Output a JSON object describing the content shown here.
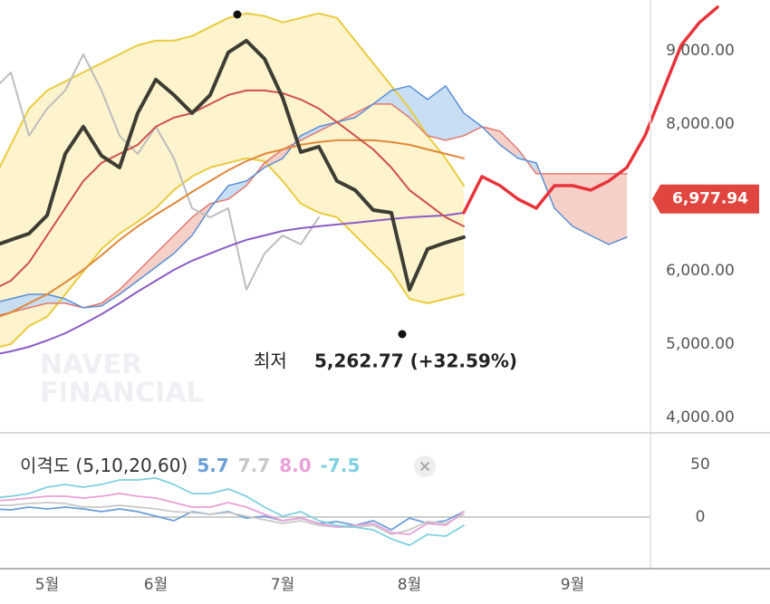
{
  "chart_data": [
    {
      "type": "line",
      "categories": [
        null,
        null,
        null,
        "5월",
        null,
        null,
        null,
        null,
        null,
        "6월",
        null,
        null,
        null,
        null,
        null,
        null,
        "7월",
        null,
        null,
        null,
        null,
        null,
        null,
        "8월",
        null,
        null,
        null,
        null,
        null,
        null,
        null,
        null,
        "9월",
        null,
        null,
        null,
        null,
        null,
        null,
        null,
        null
      ],
      "ylim": [
        3790,
        9690
      ],
      "yticks": [
        {
          "value": 4000,
          "label": "4,000.00"
        },
        {
          "value": 5000,
          "label": "5,000.00"
        },
        {
          "value": 6000,
          "label": "6,000.00"
        },
        {
          "value": 8000,
          "label": "8,000.00"
        },
        {
          "value": 9000,
          "label": "9,000.00"
        }
      ],
      "current_price": {
        "value": 6977.94,
        "label": "6,977.94",
        "color": "#e0463f"
      },
      "low_annotation": {
        "label": "최저",
        "value": "5,262.77 (+32.59%)"
      },
      "watermark": [
        "NAVER",
        "FINANCIAL"
      ],
      "series": [
        {
          "color": "#e8cc40",
          "fill": "#fdf3cc",
          "fill_to": 1,
          "width": 2,
          "values": [
            7222,
            7716,
            8210,
            8457,
            8580,
            8704,
            8829,
            8951,
            9074,
            9136,
            9136,
            9199,
            9323,
            9446,
            9508,
            9471,
            9385,
            9446,
            9508,
            9446,
            9136,
            8829,
            8520,
            8210,
            7840,
            7531,
            7162,
            null,
            null,
            null,
            null,
            null,
            null,
            null,
            null,
            null,
            null,
            null,
            null,
            null,
            null
          ]
        },
        {
          "color": "#e8cc40",
          "width": 2,
          "values": [
            4939,
            5000,
            5247,
            5371,
            5679,
            5988,
            6296,
            6506,
            6667,
            6852,
            7099,
            7284,
            7407,
            7469,
            7531,
            7494,
            7222,
            6914,
            6790,
            6728,
            6481,
            6235,
            5988,
            5617,
            5556,
            5617,
            5679,
            null,
            null,
            null,
            null,
            null,
            null,
            null,
            null,
            null,
            null,
            null,
            null,
            null,
            null
          ]
        },
        {
          "color": "#e07a70",
          "cloud_with": 3,
          "cloud_colors": [
            "#f4cbc2",
            "#c2daf4"
          ],
          "width": 1.5,
          "values": [
            5371,
            5432,
            5494,
            5556,
            5556,
            5494,
            5556,
            5741,
            5988,
            6235,
            6481,
            6728,
            6914,
            6975,
            7160,
            7469,
            7654,
            7778,
            7901,
            8025,
            8148,
            8272,
            8272,
            8087,
            7840,
            7778,
            7840,
            7963,
            7901,
            7654,
            7321,
            7321,
            7321,
            7321,
            7321,
            7321,
            null,
            null,
            null,
            null,
            null
          ]
        },
        {
          "color": "#5b8fd6",
          "width": 1.5,
          "values": [
            5556,
            5617,
            5679,
            5679,
            5617,
            5494,
            5519,
            5679,
            5864,
            6049,
            6235,
            6481,
            6852,
            7160,
            7222,
            7407,
            7531,
            7840,
            7963,
            8025,
            8087,
            8272,
            8457,
            8520,
            8333,
            8520,
            8148,
            7963,
            7716,
            7531,
            7469,
            6852,
            6605,
            6481,
            6358,
            6457,
            null,
            null,
            null,
            null,
            null
          ]
        },
        {
          "color": "#bdbdbd",
          "width": 2,
          "values": [
            8457,
            8704,
            7840,
            8210,
            8457,
            8951,
            8457,
            7840,
            7593,
            7963,
            7531,
            6852,
            6728,
            6852,
            5741,
            6235,
            6481,
            6358,
            6728,
            null,
            null,
            null,
            null,
            null,
            null,
            null,
            null,
            null,
            null,
            null,
            null,
            null,
            null,
            null,
            null,
            null,
            null,
            null,
            null,
            null,
            null
          ]
        },
        {
          "color": "#8a5cc4",
          "width": 2,
          "values": [
            4852,
            4901,
            4963,
            5049,
            5148,
            5272,
            5407,
            5556,
            5716,
            5864,
            6012,
            6136,
            6235,
            6333,
            6420,
            6481,
            6543,
            6580,
            6605,
            6630,
            6654,
            6679,
            6704,
            6728,
            6741,
            6753,
            6790,
            null,
            null,
            null,
            null,
            null,
            null,
            null,
            null,
            null,
            null,
            null,
            null,
            null,
            null
          ]
        },
        {
          "color": "#e0883a",
          "width": 2,
          "values": [
            5346,
            5432,
            5556,
            5679,
            5840,
            6012,
            6210,
            6420,
            6605,
            6765,
            6914,
            7074,
            7222,
            7370,
            7494,
            7593,
            7654,
            7716,
            7753,
            7778,
            7778,
            7778,
            7753,
            7716,
            7654,
            7593,
            7531,
            null,
            null,
            null,
            null,
            null,
            null,
            null,
            null,
            null,
            null,
            null,
            null,
            null,
            null
          ]
        },
        {
          "color": "#d0504a",
          "width": 2,
          "values": [
            5741,
            5864,
            6112,
            6481,
            6852,
            7222,
            7469,
            7593,
            7716,
            7963,
            8087,
            8148,
            8272,
            8395,
            8457,
            8457,
            8420,
            8333,
            8210,
            8025,
            7840,
            7654,
            7407,
            7099,
            6914,
            6728,
            6605,
            null,
            null,
            null,
            null,
            null,
            null,
            null,
            null,
            null,
            null,
            null,
            null,
            null,
            null
          ]
        },
        {
          "color": "#3d3d33",
          "width": 4,
          "values": [
            6333,
            6420,
            6506,
            6753,
            7593,
            7963,
            7568,
            7407,
            8148,
            8605,
            8395,
            8148,
            8395,
            8975,
            9136,
            8889,
            8358,
            7617,
            7691,
            7222,
            7099,
            6827,
            6790,
            5741,
            6296,
            6383,
            6457,
            null,
            null,
            null,
            null,
            null,
            null,
            null,
            null,
            null,
            null,
            null,
            null,
            null,
            null
          ]
        },
        {
          "color": "#e8333a",
          "width": 3.5,
          "values": [
            null,
            null,
            null,
            null,
            null,
            null,
            null,
            null,
            null,
            null,
            null,
            null,
            null,
            null,
            null,
            null,
            null,
            null,
            null,
            null,
            null,
            null,
            null,
            null,
            null,
            null,
            6790,
            7284,
            7160,
            6975,
            6852,
            7160,
            7160,
            7099,
            7222,
            7407,
            7840,
            8457,
            9074,
            9383,
            9593
          ]
        }
      ]
    },
    {
      "type": "line",
      "title": "이격도 (5,10,20,60)",
      "ylim": [
        -49,
        80
      ],
      "yticks": [
        0,
        50
      ],
      "series": [
        {
          "legend_label": "5.7",
          "color": "#6a9fd8",
          "values": [
            7.8,
            6.9,
            9.5,
            7.8,
            9.5,
            7.8,
            5.2,
            7.8,
            5.2,
            0.9,
            -3.4,
            5.2,
            2.6,
            5.2,
            -0.9,
            0.9,
            -3.4,
            -0.9,
            -6.0,
            -4.3,
            -7.8,
            -3.4,
            -12.1,
            -0.9,
            -6.0,
            -3.4,
            5.2
          ]
        },
        {
          "legend_label": "7.7",
          "color": "#c8c8c8",
          "values": [
            11.2,
            11.2,
            12.9,
            13.8,
            12.9,
            9.5,
            9.5,
            11.2,
            9.5,
            7.8,
            5.2,
            4.3,
            2.6,
            4.3,
            0.9,
            -2.6,
            -6.0,
            -3.4,
            -7.8,
            -9.5,
            -9.5,
            -7.8,
            -16.4,
            -12.1,
            -4.3,
            -6.0,
            2.6
          ]
        },
        {
          "legend_label": "8.0",
          "color": "#e8a0d8",
          "values": [
            15.5,
            16.4,
            18.1,
            19.8,
            19.8,
            18.1,
            19.8,
            22.4,
            19.8,
            18.1,
            13.8,
            9.5,
            9.5,
            13.8,
            9.5,
            2.6,
            -3.4,
            -0.9,
            -6.0,
            -9.5,
            -7.8,
            -6.0,
            -14.7,
            -16.4,
            -6.0,
            -7.8,
            5.2
          ]
        },
        {
          "legend_label": "-7.5",
          "color": "#7fd0e0",
          "values": [
            18.1,
            19.8,
            22.4,
            28.4,
            31.0,
            28.4,
            31.0,
            35.3,
            35.3,
            37.1,
            31.0,
            22.4,
            22.4,
            26.7,
            19.8,
            9.5,
            0.9,
            5.2,
            -3.4,
            -7.8,
            -9.5,
            -12.1,
            -20.7,
            -26.7,
            -16.4,
            -18.1,
            -7.8
          ]
        }
      ]
    }
  ]
}
